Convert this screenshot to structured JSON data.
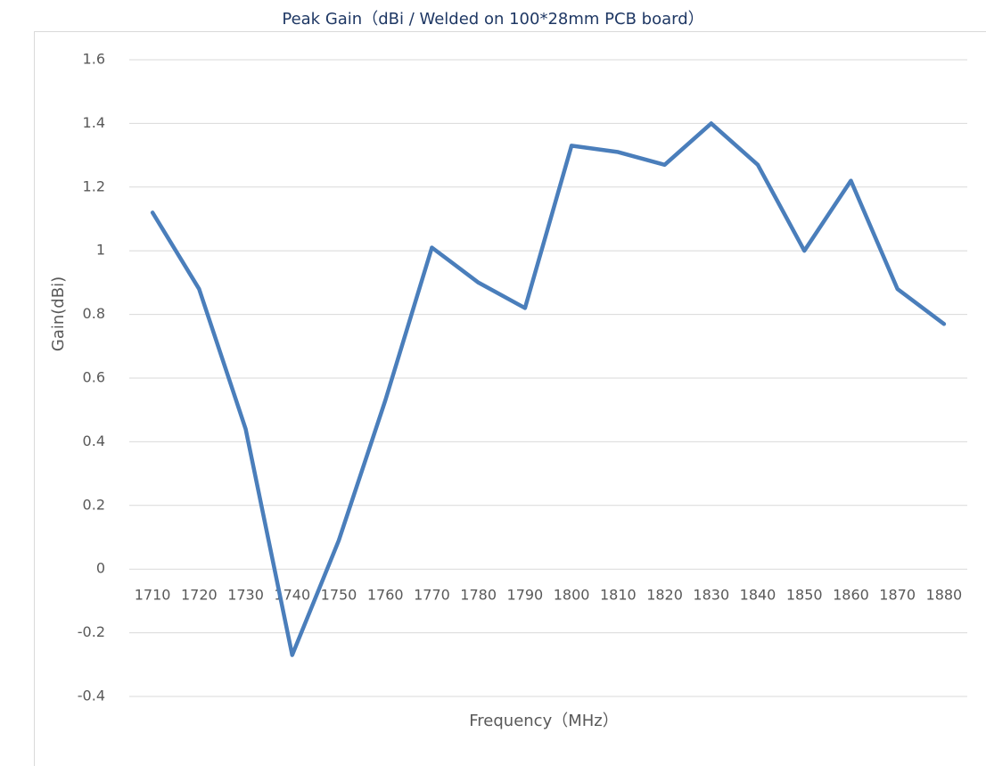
{
  "chart_data": {
    "type": "line",
    "title": "Peak Gain（dBi / Welded on 100*28mm PCB board）",
    "x_label": "Frequency（MHz）",
    "y_label": "Gain(dBi)",
    "categories": [
      "1710",
      "1720",
      "1730",
      "1740",
      "1750",
      "1760",
      "1770",
      "1780",
      "1790",
      "1800",
      "1810",
      "1820",
      "1830",
      "1840",
      "1850",
      "1860",
      "1870",
      "1880"
    ],
    "series": [
      {
        "name": "Peak Gain",
        "color": "#4a7ebb",
        "values": [
          1.12,
          0.88,
          0.44,
          -0.27,
          0.09,
          0.53,
          1.01,
          0.9,
          0.82,
          1.33,
          1.31,
          1.27,
          1.4,
          1.27,
          1.0,
          1.22,
          0.88,
          0.77
        ]
      }
    ],
    "ylim": [
      -0.4,
      1.6
    ],
    "yticks": [
      -0.4,
      -0.2,
      0,
      0.2,
      0.4,
      0.6,
      0.8,
      1,
      1.2,
      1.4,
      1.6
    ],
    "grid": true
  }
}
